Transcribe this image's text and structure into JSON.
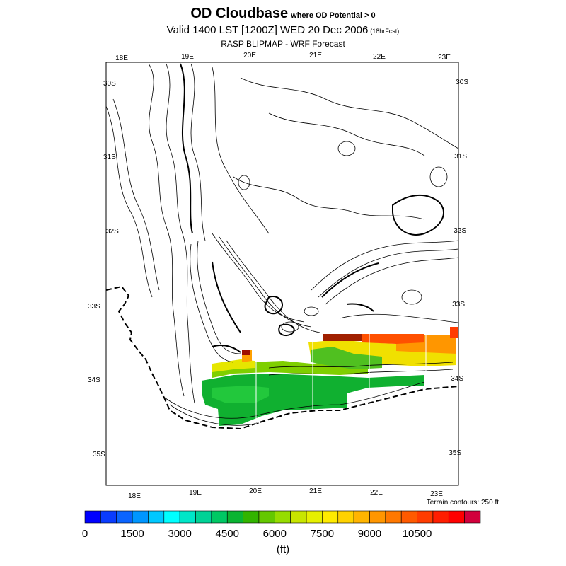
{
  "header": {
    "title": "OD Cloudbase",
    "title_qualifier": "where OD Potential > 0",
    "valid_line": "Valid 1400 LST [1200Z] WED 20 Dec 2006",
    "forecast_hours": "(18hrFcst)",
    "source_line": "RASP BLIPMAP - WRF Forecast"
  },
  "map": {
    "lon_labels_top": [
      "18E",
      "19E",
      "20E",
      "21E",
      "22E",
      "23E"
    ],
    "lon_labels_bottom": [
      "18E",
      "19E",
      "20E",
      "21E",
      "22E",
      "23E"
    ],
    "lat_labels_left": [
      "30S",
      "31S",
      "32S",
      "33S",
      "34S",
      "35S"
    ],
    "lat_labels_right": [
      "30S",
      "31S",
      "32S",
      "33S",
      "34S",
      "35S"
    ],
    "terrain_note": "Terrain contours: 250 ft"
  },
  "colorbar": {
    "colors": [
      "#0000ff",
      "#0a3cff",
      "#0a64ff",
      "#0096ff",
      "#00c8ff",
      "#00ffff",
      "#00e6c8",
      "#00d296",
      "#00c864",
      "#0ab432",
      "#32b400",
      "#64c800",
      "#96dc00",
      "#c8e600",
      "#e6f000",
      "#ffeb00",
      "#ffd200",
      "#ffb400",
      "#ff9600",
      "#ff7800",
      "#ff5a00",
      "#ff3c00",
      "#ff1e00",
      "#ff0000",
      "#d2003c"
    ],
    "tick_labels": [
      "0",
      "1500",
      "3000",
      "4500",
      "6000",
      "7500",
      "9000",
      "10500"
    ],
    "unit_label": "(ft)"
  }
}
